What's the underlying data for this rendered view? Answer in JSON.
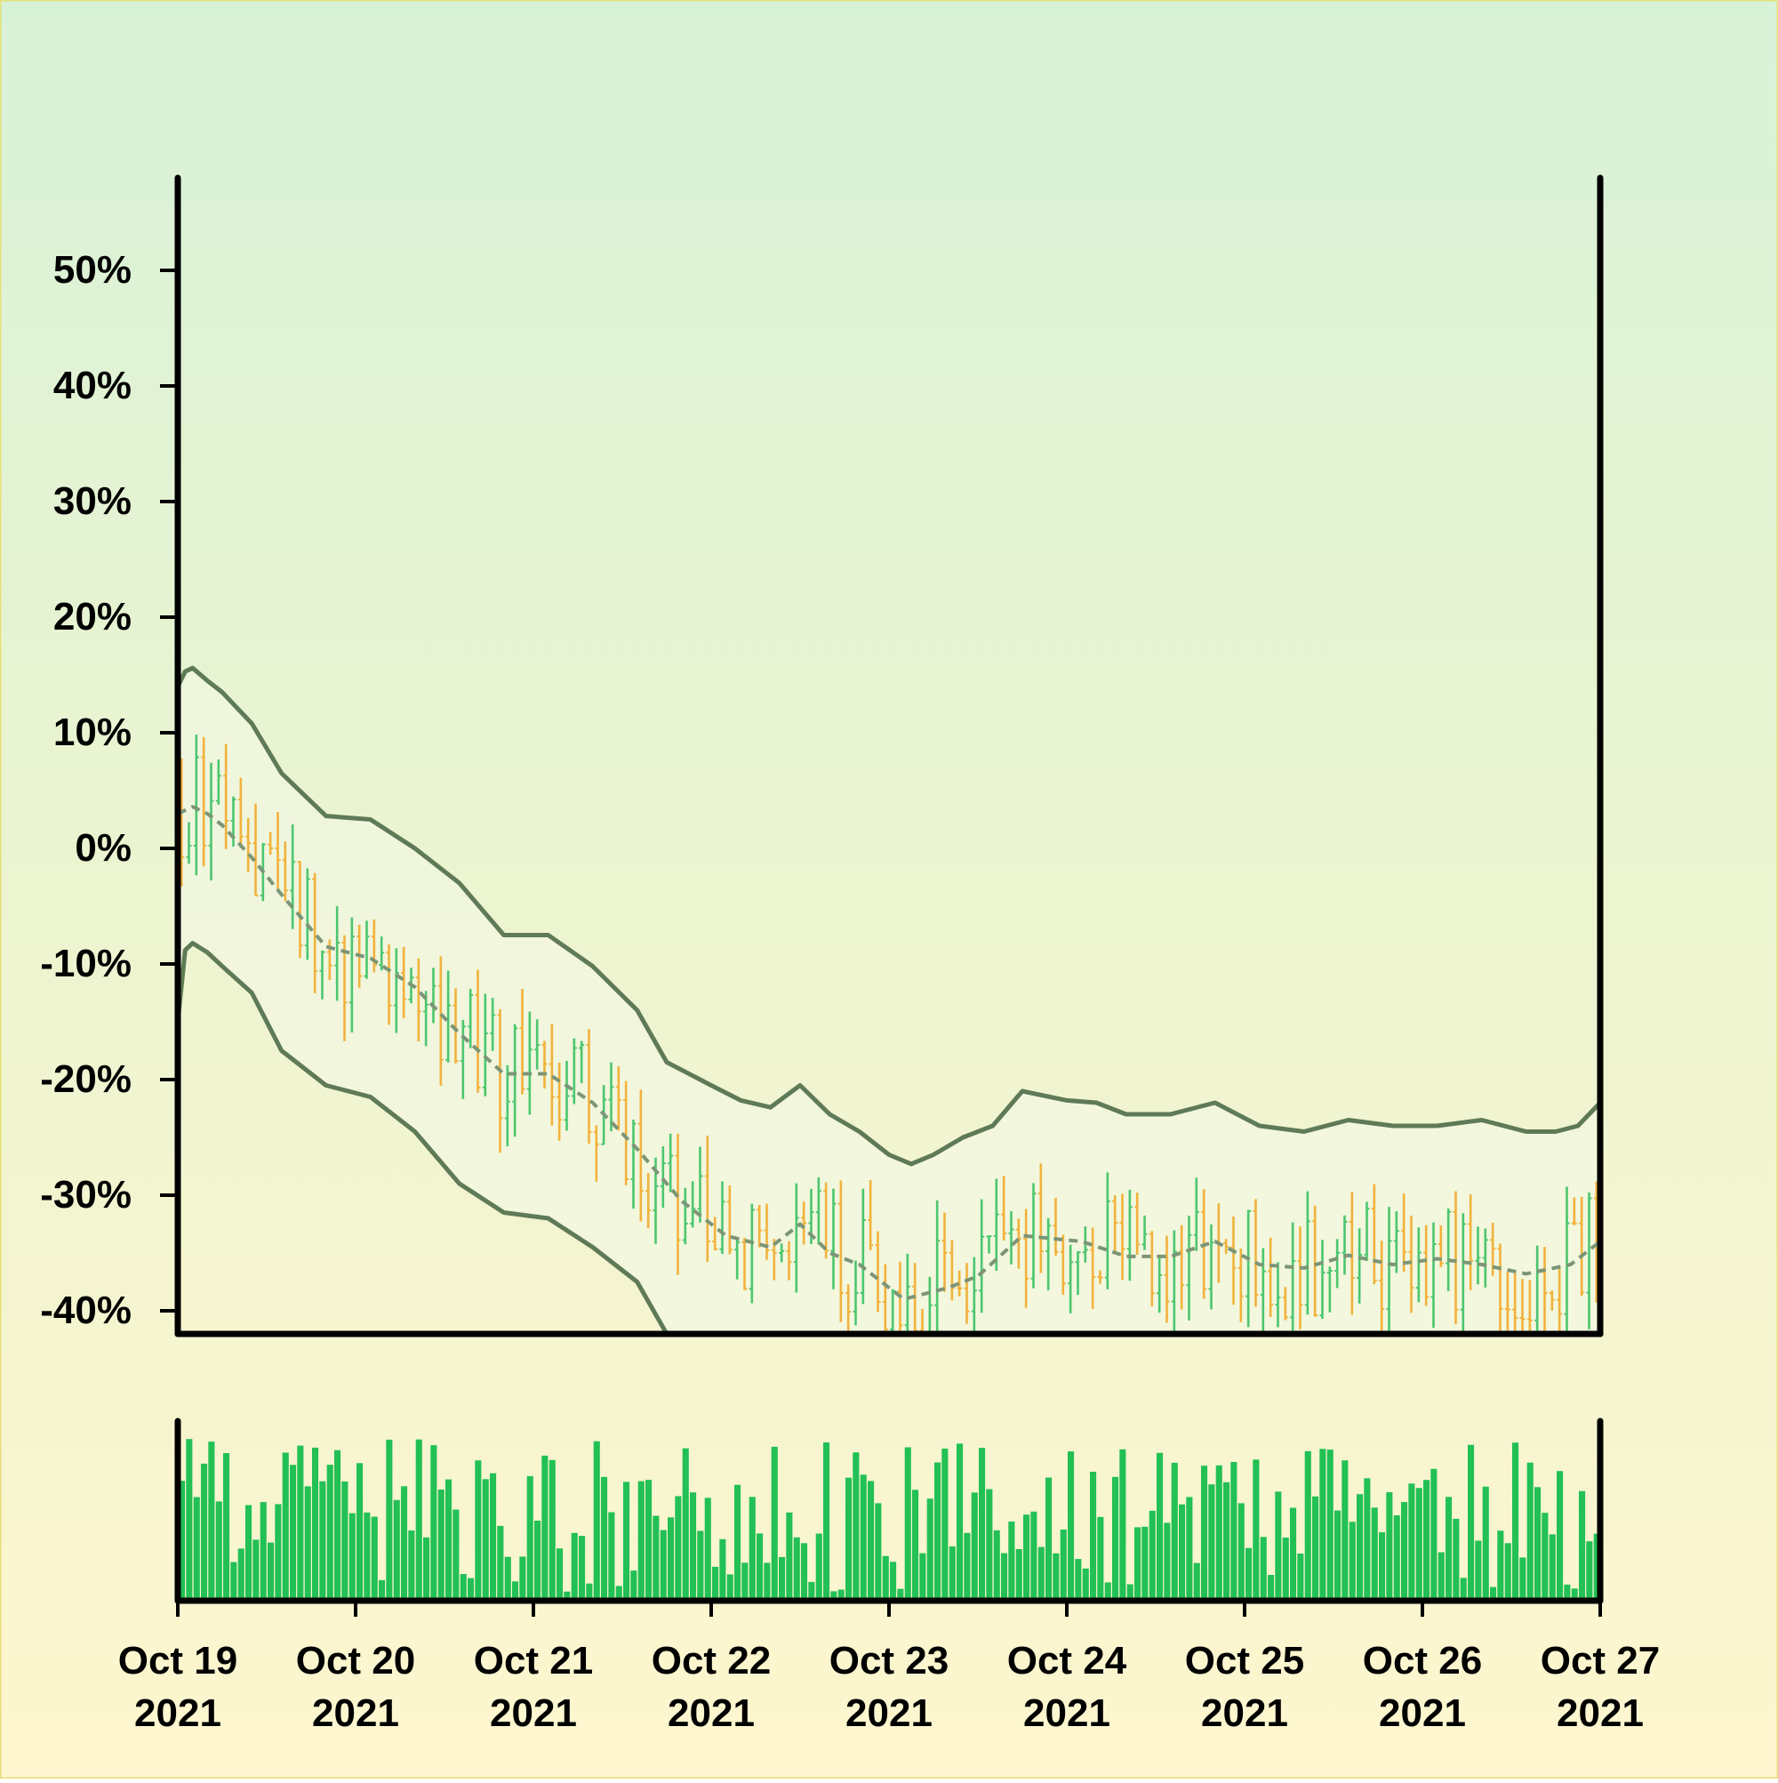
{
  "chart_data": [
    {
      "type": "ohlc",
      "title": "",
      "xlabel": "",
      "ylabel": "",
      "x_ticks": [
        {
          "date": "2021-10-19",
          "line1": "Oct 19",
          "line2": "2021"
        },
        {
          "date": "2021-10-20",
          "line1": "Oct 20",
          "line2": "2021"
        },
        {
          "date": "2021-10-21",
          "line1": "Oct 21",
          "line2": "2021"
        },
        {
          "date": "2021-10-22",
          "line1": "Oct 22",
          "line2": "2021"
        },
        {
          "date": "2021-10-23",
          "line1": "Oct 23",
          "line2": "2021"
        },
        {
          "date": "2021-10-24",
          "line1": "Oct 24",
          "line2": "2021"
        },
        {
          "date": "2021-10-25",
          "line1": "Oct 25",
          "line2": "2021"
        },
        {
          "date": "2021-10-26",
          "line1": "Oct 26",
          "line2": "2021"
        },
        {
          "date": "2021-10-27",
          "line1": "Oct 27",
          "line2": "2021"
        }
      ],
      "xlim": [
        "2021-10-19",
        "2021-10-27"
      ],
      "y_ticks": [
        {
          "value": 50,
          "label": "50%"
        },
        {
          "value": 40,
          "label": "40%"
        },
        {
          "value": 30,
          "label": "30%"
        },
        {
          "value": 20,
          "label": "20%"
        },
        {
          "value": 10,
          "label": "10%"
        },
        {
          "value": 0,
          "label": "0%"
        },
        {
          "value": -10,
          "label": "-10%"
        },
        {
          "value": -20,
          "label": "-20%"
        },
        {
          "value": -30,
          "label": "-30%"
        },
        {
          "value": -40,
          "label": "-40%"
        }
      ],
      "ylim": [
        -42,
        58
      ],
      "y_unit": "%",
      "bar_interval_hours": 1,
      "up_color": "#4cc66f",
      "down_color": "#f1b23c",
      "bands": {
        "color": "#5f7a56",
        "upper": {
          "style": "solid",
          "points": [
            [
              "2021-10-19 00:00",
              14
            ],
            [
              "2021-10-19 01:00",
              15.3
            ],
            [
              "2021-10-19 02:00",
              15.6
            ],
            [
              "2021-10-19 04:00",
              14.5
            ],
            [
              "2021-10-19 06:00",
              13.5
            ],
            [
              "2021-10-19 10:00",
              10.8
            ],
            [
              "2021-10-19 14:00",
              6.5
            ],
            [
              "2021-10-19 20:00",
              2.8
            ],
            [
              "2021-10-20 02:00",
              2.5
            ],
            [
              "2021-10-20 08:00",
              0
            ],
            [
              "2021-10-20 14:00",
              -3
            ],
            [
              "2021-10-20 20:00",
              -7.5
            ],
            [
              "2021-10-21 02:00",
              -7.5
            ],
            [
              "2021-10-21 08:00",
              -10.2
            ],
            [
              "2021-10-21 14:00",
              -14
            ],
            [
              "2021-10-21 18:00",
              -18.5
            ],
            [
              "2021-10-22 00:00",
              -20.5
            ],
            [
              "2021-10-22 04:00",
              -21.8
            ],
            [
              "2021-10-22 08:00",
              -22.4
            ],
            [
              "2021-10-22 12:00",
              -20.5
            ],
            [
              "2021-10-22 16:00",
              -23
            ],
            [
              "2021-10-22 20:00",
              -24.5
            ],
            [
              "2021-10-23 00:00",
              -26.5
            ],
            [
              "2021-10-23 03:00",
              -27.3
            ],
            [
              "2021-10-23 06:00",
              -26.5
            ],
            [
              "2021-10-23 10:00",
              -25
            ],
            [
              "2021-10-23 14:00",
              -24
            ],
            [
              "2021-10-23 18:00",
              -21
            ],
            [
              "2021-10-24 00:00",
              -21.8
            ],
            [
              "2021-10-24 04:00",
              -22
            ],
            [
              "2021-10-24 08:00",
              -23
            ],
            [
              "2021-10-24 14:00",
              -23
            ],
            [
              "2021-10-24 20:00",
              -22
            ],
            [
              "2021-10-25 02:00",
              -24
            ],
            [
              "2021-10-25 08:00",
              -24.5
            ],
            [
              "2021-10-25 14:00",
              -23.5
            ],
            [
              "2021-10-25 20:00",
              -24
            ],
            [
              "2021-10-26 02:00",
              -24
            ],
            [
              "2021-10-26 08:00",
              -23.5
            ],
            [
              "2021-10-26 14:00",
              -24.5
            ],
            [
              "2021-10-26 18:00",
              -24.5
            ],
            [
              "2021-10-26 21:00",
              -24
            ],
            [
              "2021-10-27 00:00",
              -22
            ]
          ]
        },
        "middle": {
          "style": "dashed",
          "points": [
            [
              "2021-10-19 00:00",
              3
            ],
            [
              "2021-10-19 02:00",
              3.6
            ],
            [
              "2021-10-19 04:00",
              3
            ],
            [
              "2021-10-19 06:00",
              2
            ],
            [
              "2021-10-19 10:00",
              -0.8
            ],
            [
              "2021-10-19 14:00",
              -4
            ],
            [
              "2021-10-19 20:00",
              -8.5
            ],
            [
              "2021-10-20 02:00",
              -9.5
            ],
            [
              "2021-10-20 08:00",
              -12
            ],
            [
              "2021-10-20 14:00",
              -16
            ],
            [
              "2021-10-20 20:00",
              -19.5
            ],
            [
              "2021-10-21 02:00",
              -19.5
            ],
            [
              "2021-10-21 08:00",
              -22
            ],
            [
              "2021-10-21 14:00",
              -26
            ],
            [
              "2021-10-21 20:00",
              -30.5
            ],
            [
              "2021-10-22 02:00",
              -33.5
            ],
            [
              "2021-10-22 08:00",
              -34.5
            ],
            [
              "2021-10-22 12:00",
              -32.5
            ],
            [
              "2021-10-22 16:00",
              -35
            ],
            [
              "2021-10-22 20:00",
              -36
            ],
            [
              "2021-10-23 02:00",
              -39
            ],
            [
              "2021-10-23 08:00",
              -38
            ],
            [
              "2021-10-23 12:00",
              -37
            ],
            [
              "2021-10-23 18:00",
              -33.5
            ],
            [
              "2021-10-24 02:00",
              -34
            ],
            [
              "2021-10-24 08:00",
              -35.3
            ],
            [
              "2021-10-24 14:00",
              -35.3
            ],
            [
              "2021-10-24 20:00",
              -34
            ],
            [
              "2021-10-25 02:00",
              -36
            ],
            [
              "2021-10-25 08:00",
              -36.3
            ],
            [
              "2021-10-25 14:00",
              -35.2
            ],
            [
              "2021-10-25 20:00",
              -36
            ],
            [
              "2021-10-26 02:00",
              -35.5
            ],
            [
              "2021-10-26 08:00",
              -36
            ],
            [
              "2021-10-26 14:00",
              -36.8
            ],
            [
              "2021-10-26 20:00",
              -36
            ],
            [
              "2021-10-27 00:00",
              -34
            ]
          ]
        },
        "lower": {
          "style": "solid",
          "points": [
            [
              "2021-10-19 00:00",
              -15
            ],
            [
              "2021-10-19 01:00",
              -8.8
            ],
            [
              "2021-10-19 02:00",
              -8.2
            ],
            [
              "2021-10-19 04:00",
              -9
            ],
            [
              "2021-10-19 06:00",
              -10.2
            ],
            [
              "2021-10-19 10:00",
              -12.5
            ],
            [
              "2021-10-19 14:00",
              -17.5
            ],
            [
              "2021-10-19 20:00",
              -20.5
            ],
            [
              "2021-10-20 02:00",
              -21.5
            ],
            [
              "2021-10-20 08:00",
              -24.5
            ],
            [
              "2021-10-20 14:00",
              -29
            ],
            [
              "2021-10-20 20:00",
              -31.5
            ],
            [
              "2021-10-21 02:00",
              -32
            ],
            [
              "2021-10-21 08:00",
              -34.5
            ],
            [
              "2021-10-21 14:00",
              -37.5
            ],
            [
              "2021-10-21 18:00",
              -42
            ]
          ]
        }
      }
    },
    {
      "type": "bar",
      "role": "volume",
      "title": "",
      "color": "#22c055",
      "bar_interval_hours": 1
    }
  ]
}
